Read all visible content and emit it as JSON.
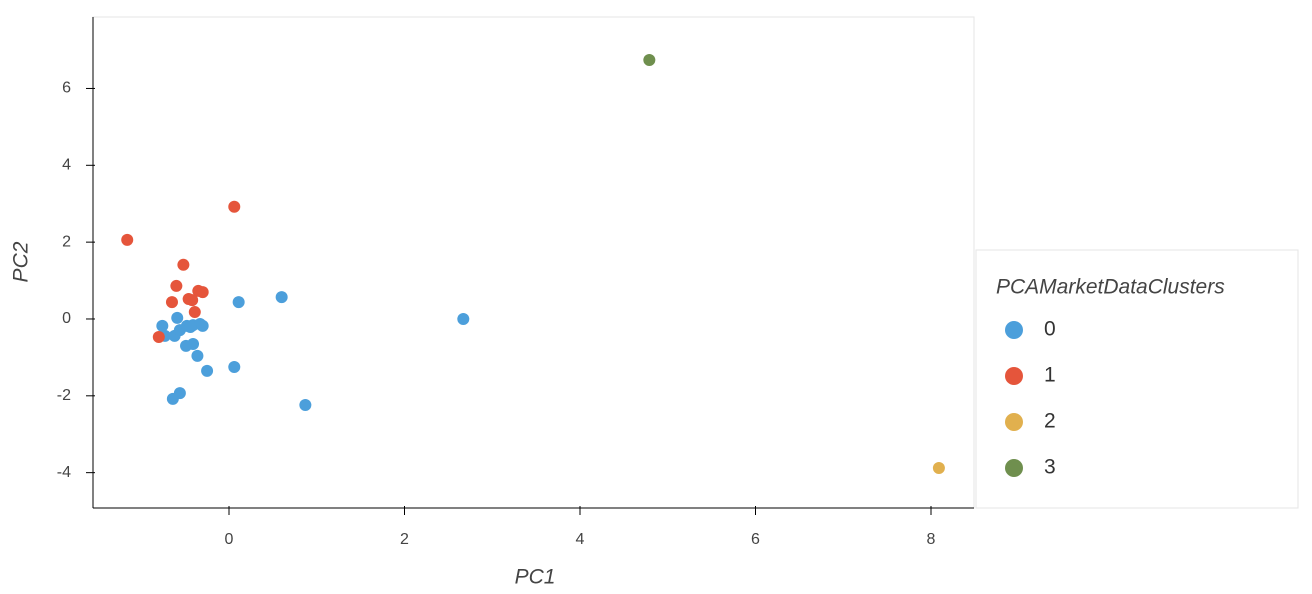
{
  "chart_data": {
    "type": "scatter",
    "xlabel": "PC1",
    "ylabel": "PC2",
    "legend_title": "PCAMarketDataClusters",
    "xlim": [
      -1.55,
      8.49
    ],
    "ylim": [
      -4.92,
      7.86
    ],
    "xticks": [
      0,
      2,
      4,
      6,
      8
    ],
    "yticks": [
      -4,
      -2,
      0,
      2,
      4,
      6
    ],
    "legend_position": "right",
    "series": [
      {
        "name": "0",
        "color": "#4c9fdb",
        "x": [
          2.67,
          0.6,
          0.11,
          0.06,
          0.87,
          -0.56,
          -0.64,
          -0.25,
          -0.36,
          -0.41,
          -0.49,
          -0.76,
          -0.73,
          -0.62,
          -0.59,
          -0.56,
          -0.48,
          -0.41,
          -0.33,
          -0.3,
          -0.44
        ],
        "values": [
          0,
          0.57,
          0.44,
          -1.25,
          -2.24,
          -1.93,
          -2.08,
          -1.35,
          -0.96,
          -0.65,
          -0.7,
          -0.18,
          -0.44,
          -0.44,
          0.03,
          -0.29,
          -0.18,
          -0.16,
          -0.13,
          -0.18,
          -0.21
        ]
      },
      {
        "name": "1",
        "color": "#e5553b",
        "x": [
          -1.16,
          0.06,
          -0.52,
          -0.6,
          -0.35,
          -0.3,
          -0.65,
          -0.46,
          -0.42,
          -0.39,
          -0.8
        ],
        "values": [
          2.06,
          2.92,
          1.41,
          0.86,
          0.73,
          0.7,
          0.44,
          0.52,
          0.49,
          0.18,
          -0.47
        ]
      },
      {
        "name": "2",
        "color": "#e1b04e",
        "x": [
          8.09
        ],
        "values": [
          -3.88
        ]
      },
      {
        "name": "3",
        "color": "#6f8f4e",
        "x": [
          4.79
        ],
        "values": [
          6.74
        ]
      }
    ]
  }
}
